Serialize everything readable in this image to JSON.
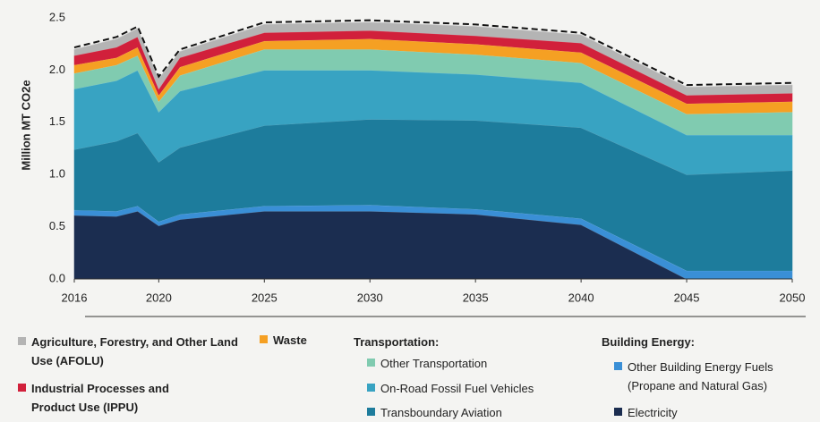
{
  "chart_data": {
    "type": "stacked_area",
    "y_label": "Million MT CO2e",
    "x": [
      2016,
      2018,
      2019,
      2020,
      2021,
      2025,
      2030,
      2035,
      2040,
      2045,
      2050
    ],
    "xlim": [
      2016,
      2050
    ],
    "xticks": [
      2016,
      2020,
      2025,
      2030,
      2035,
      2040,
      2045,
      2050
    ],
    "ylim": [
      0,
      2.5
    ],
    "yticks": [
      {
        "value": 0,
        "label": "0.0"
      },
      0.5,
      {
        "value": 1,
        "label": "1.0"
      },
      1.5,
      {
        "value": 2,
        "label": "2.0"
      },
      2.5
    ],
    "legend_headings": [
      "Transportation:",
      "Building Energy:"
    ],
    "series": [
      {
        "name": "Electricity",
        "color": "#1b2d50",
        "values": [
          0.61,
          0.6,
          0.65,
          0.51,
          0.57,
          0.65,
          0.65,
          0.62,
          0.52,
          0.0,
          0.0
        ]
      },
      {
        "name": "Other Building Energy Fuels (Propane and Natural Gas)",
        "color": "#3a8fd6",
        "values": [
          0.05,
          0.05,
          0.05,
          0.04,
          0.05,
          0.05,
          0.06,
          0.05,
          0.06,
          0.08,
          0.08
        ]
      },
      {
        "name": "Transboundary Aviation",
        "color": "#1d7c9c",
        "values": [
          0.58,
          0.67,
          0.7,
          0.57,
          0.64,
          0.77,
          0.82,
          0.85,
          0.87,
          0.92,
          0.96
        ]
      },
      {
        "name": "On-Road Fossil Fuel Vehicles",
        "color": "#38a3c2",
        "values": [
          0.58,
          0.58,
          0.6,
          0.48,
          0.54,
          0.53,
          0.47,
          0.44,
          0.43,
          0.38,
          0.34
        ]
      },
      {
        "name": "Other Transportation",
        "color": "#80cbb0",
        "values": [
          0.15,
          0.15,
          0.14,
          0.1,
          0.15,
          0.2,
          0.2,
          0.19,
          0.19,
          0.2,
          0.22
        ]
      },
      {
        "name": "Waste",
        "color": "#f5a023",
        "values": [
          0.08,
          0.07,
          0.08,
          0.06,
          0.08,
          0.08,
          0.1,
          0.1,
          0.1,
          0.1,
          0.1
        ]
      },
      {
        "name": "Industrial Processes and Product Use (IPPU)",
        "color": "#d1203b",
        "values": [
          0.09,
          0.1,
          0.1,
          0.06,
          0.09,
          0.08,
          0.08,
          0.08,
          0.09,
          0.08,
          0.08
        ]
      },
      {
        "name": "Agriculture, Forestry, and Other Land Use (AFOLU)",
        "color": "#b4b4b4",
        "values": [
          0.06,
          0.08,
          0.08,
          0.1,
          0.06,
          0.08,
          0.08,
          0.09,
          0.08,
          0.08,
          0.08
        ]
      }
    ]
  }
}
